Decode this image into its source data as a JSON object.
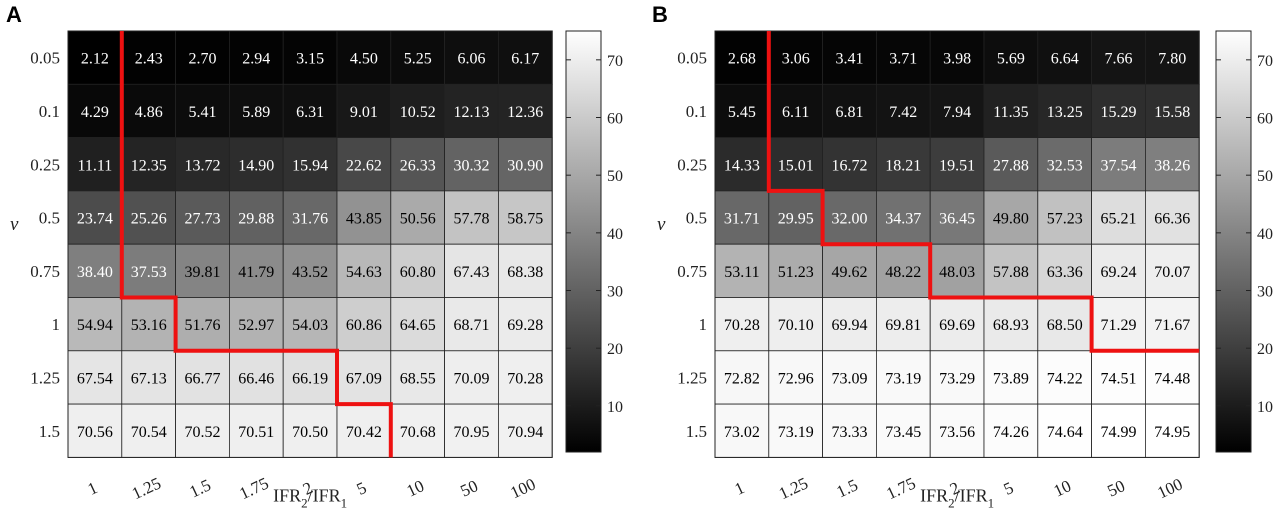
{
  "chart_data": [
    {
      "type": "heatmap",
      "panel_label": "A",
      "xlabel": {
        "base": "IFR",
        "sub1": "2",
        "mid": "/IFR",
        "sub2": "1"
      },
      "ylabel": "ν",
      "x_categories": [
        "1",
        "1.25",
        "1.5",
        "1.75",
        "2",
        "5",
        "10",
        "50",
        "100"
      ],
      "y_categories": [
        "0.05",
        "0.1",
        "0.25",
        "0.5",
        "0.75",
        "1",
        "1.25",
        "1.5"
      ],
      "values": [
        [
          2.12,
          2.43,
          2.7,
          2.94,
          3.15,
          4.5,
          5.25,
          6.06,
          6.17
        ],
        [
          4.29,
          4.86,
          5.41,
          5.89,
          6.31,
          9.01,
          10.52,
          12.13,
          12.36
        ],
        [
          11.11,
          12.35,
          13.72,
          14.9,
          15.94,
          22.62,
          26.33,
          30.32,
          30.9
        ],
        [
          23.74,
          25.26,
          27.73,
          29.88,
          31.76,
          43.85,
          50.56,
          57.78,
          58.75
        ],
        [
          38.4,
          37.53,
          39.81,
          41.79,
          43.52,
          54.63,
          60.8,
          67.43,
          68.38
        ],
        [
          54.94,
          53.16,
          51.76,
          52.97,
          54.03,
          60.86,
          64.65,
          68.71,
          69.28
        ],
        [
          67.54,
          67.13,
          66.77,
          66.46,
          66.19,
          67.09,
          68.55,
          70.09,
          70.28
        ],
        [
          70.56,
          70.54,
          70.52,
          70.51,
          70.5,
          70.42,
          70.68,
          70.95,
          70.94
        ]
      ],
      "boundary_rows_per_column": [
        0,
        5,
        6,
        6,
        6,
        7,
        8,
        8,
        8
      ],
      "colorbar": {
        "min": 2,
        "max": 75,
        "ticks": [
          10,
          20,
          30,
          40,
          50,
          60,
          70
        ]
      },
      "boundary_color": "#ee1111"
    },
    {
      "type": "heatmap",
      "panel_label": "B",
      "xlabel": {
        "base": "IFR",
        "sub1": "2",
        "mid": "/IFR",
        "sub2": "1"
      },
      "ylabel": "ν",
      "x_categories": [
        "1",
        "1.25",
        "1.5",
        "1.75",
        "2",
        "5",
        "10",
        "50",
        "100"
      ],
      "y_categories": [
        "0.05",
        "0.1",
        "0.25",
        "0.5",
        "0.75",
        "1",
        "1.25",
        "1.5"
      ],
      "values": [
        [
          2.68,
          3.06,
          3.41,
          3.71,
          3.98,
          5.69,
          6.64,
          7.66,
          7.8
        ],
        [
          5.45,
          6.11,
          6.81,
          7.42,
          7.94,
          11.35,
          13.25,
          15.29,
          15.58
        ],
        [
          14.33,
          15.01,
          16.72,
          18.21,
          19.51,
          27.88,
          32.53,
          37.54,
          38.26
        ],
        [
          31.71,
          29.95,
          32.0,
          34.37,
          36.45,
          49.8,
          57.23,
          65.21,
          66.36
        ],
        [
          53.11,
          51.23,
          49.62,
          48.22,
          48.03,
          57.88,
          63.36,
          69.24,
          70.07
        ],
        [
          70.28,
          70.1,
          69.94,
          69.81,
          69.69,
          68.93,
          68.5,
          71.29,
          71.67
        ],
        [
          72.82,
          72.96,
          73.09,
          73.19,
          73.29,
          73.89,
          74.22,
          74.51,
          74.48
        ],
        [
          73.02,
          73.19,
          73.33,
          73.45,
          73.56,
          74.26,
          74.64,
          74.99,
          74.95
        ]
      ],
      "boundary_rows_per_column": [
        0,
        3,
        4,
        4,
        5,
        5,
        5,
        6,
        6
      ],
      "colorbar": {
        "min": 2,
        "max": 75,
        "ticks": [
          10,
          20,
          30,
          40,
          50,
          60,
          70
        ]
      },
      "boundary_color": "#ee1111"
    }
  ]
}
